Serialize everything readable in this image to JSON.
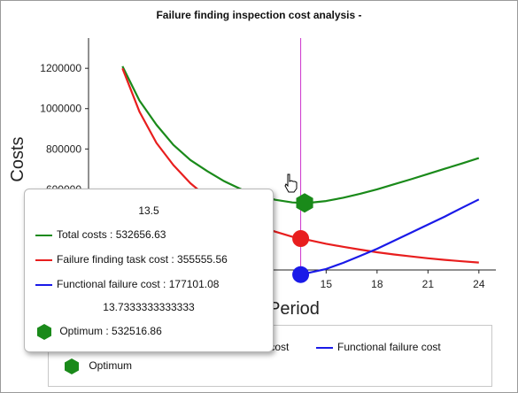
{
  "chart_data": {
    "type": "line",
    "title": "Failure finding inspection cost analysis -",
    "xlabel": "Period",
    "ylabel": "Costs",
    "xlim": [
      1,
      25
    ],
    "ylim": [
      200000,
      1350000
    ],
    "xticks": [
      "15",
      "18",
      "21",
      "24"
    ],
    "xtick_values": [
      15,
      18,
      21,
      24
    ],
    "yticks": [
      "600000",
      "800000",
      "1000000",
      "1200000"
    ],
    "ytick_values": [
      600000,
      800000,
      1000000,
      1200000
    ],
    "cursor_x": 13.5,
    "series": [
      {
        "name": "Total costs",
        "color": "#1a8a1a",
        "x": [
          3,
          4,
          5,
          6,
          7,
          8,
          9,
          10,
          11,
          12,
          13,
          13.5,
          14,
          15,
          16,
          17,
          18,
          19,
          20,
          21,
          22,
          23,
          24
        ],
        "y": [
          1210000,
          1040000,
          920000,
          820000,
          745000,
          690000,
          640000,
          600000,
          570000,
          548000,
          535000,
          532657,
          533000,
          542000,
          558000,
          578000,
          600000,
          625000,
          650000,
          676000,
          702000,
          728000,
          755000
        ]
      },
      {
        "name": "Failure finding task cost",
        "color": "#e81e1e",
        "x": [
          3,
          4,
          5,
          6,
          7,
          8,
          9,
          10,
          11,
          12,
          13,
          13.5,
          14,
          15,
          16,
          17,
          18,
          19,
          20,
          21,
          22,
          23,
          24
        ],
        "y": [
          1200000,
          985000,
          830000,
          720000,
          630000,
          560000,
          505000,
          460000,
          420000,
          390000,
          365000,
          355556,
          348000,
          330000,
          315000,
          301000,
          288000,
          277000,
          267000,
          258000,
          250000,
          243000,
          237000
        ]
      },
      {
        "name": "Functional failure cost",
        "color": "#1a1ae8",
        "x": [
          13.5,
          15,
          16,
          17,
          18,
          19,
          20,
          21,
          22,
          23,
          24
        ],
        "y": [
          177101,
          205000,
          235000,
          270000,
          305000,
          345000,
          385000,
          425000,
          465000,
          508000,
          550000
        ]
      }
    ],
    "markers": [
      {
        "series": "Total costs",
        "x": 13.733,
        "y": 532517,
        "shape": "hexagon",
        "color": "#1a8a1a"
      },
      {
        "series": "Failure finding task cost",
        "x": 13.5,
        "y": 355556,
        "shape": "circle",
        "color": "#e81e1e"
      },
      {
        "series": "Functional failure cost",
        "x": 13.5,
        "y": 177101,
        "shape": "circle",
        "color": "#1a1ae8"
      }
    ],
    "legend": {
      "placement": "bottom",
      "items": [
        "k cost",
        "Functional failure cost",
        "Optimum"
      ]
    }
  },
  "tooltip": {
    "x_value": "13.5",
    "rows": [
      {
        "label": "Total costs : 532656.63",
        "color": "#1a8a1a"
      },
      {
        "label": "Failure finding task cost : 355555.56",
        "color": "#e81e1e"
      },
      {
        "label": "Functional failure cost : 177101.08",
        "color": "#1a1ae8"
      }
    ],
    "opt_x": "13.7333333333333",
    "opt_label": "Optimum : 532516.86",
    "opt_color": "#1a8a1a"
  },
  "colors": {
    "cursor_line": "#cc33cc",
    "axis": "#222222"
  }
}
